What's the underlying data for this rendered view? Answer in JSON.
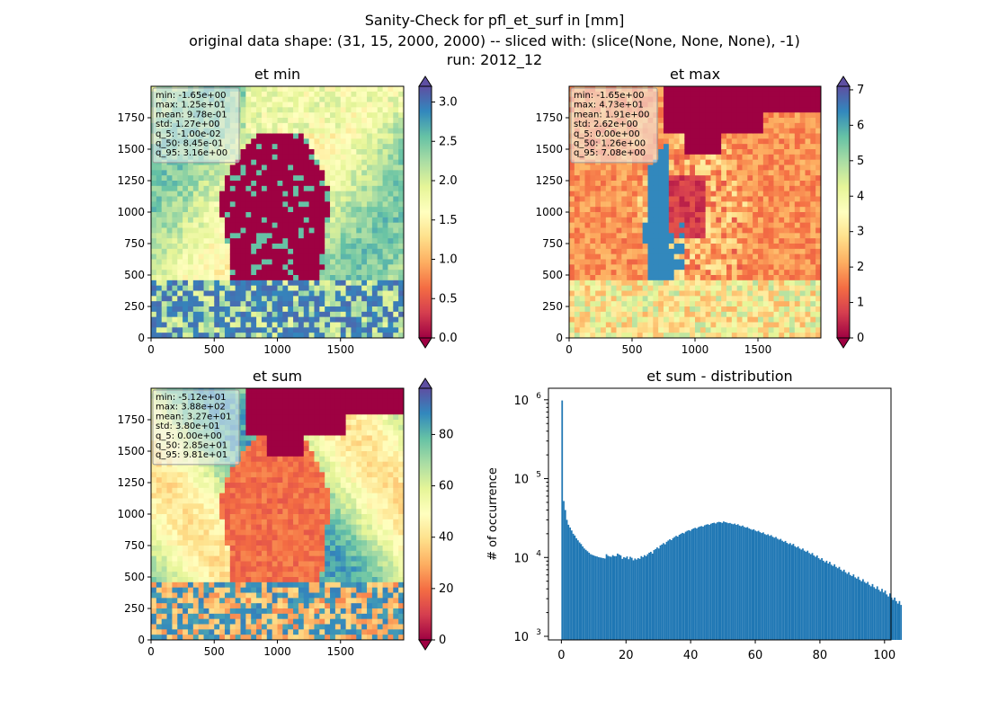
{
  "figure": {
    "title_lines": [
      "Sanity-Check for pfl_et_surf in [mm]",
      "original data shape: (31, 15, 2000, 2000) -- sliced with: (slice(None, None, None), -1)",
      "run: 2012_12"
    ]
  },
  "chart_data": [
    {
      "type": "heatmap",
      "title": "et min",
      "colormap": "Spectral",
      "xlim": [
        0,
        2000
      ],
      "ylim": [
        0,
        2000
      ],
      "xticks": [
        "0",
        "500",
        "1000",
        "1500"
      ],
      "yticks": [
        "0",
        "250",
        "500",
        "750",
        "1000",
        "1250",
        "1500",
        "1750"
      ],
      "colorbar": {
        "min": 0,
        "max": 3.2,
        "extend": "both",
        "ticks": [
          "0.0",
          "0.5",
          "1.0",
          "1.5",
          "2.0",
          "2.5",
          "3.0"
        ],
        "tick_values": [
          0,
          0.5,
          1.0,
          1.5,
          2.0,
          2.5,
          3.0
        ]
      },
      "stats": [
        "min: -1.65e+00",
        "max: 1.25e+01",
        "mean: 9.78e-01",
        "std: 1.27e+00",
        "q_5: -1.00e-02",
        "q_50: 8.45e-01",
        "q_95: 3.16e+00"
      ]
    },
    {
      "type": "heatmap",
      "title": "et max",
      "colormap": "Spectral",
      "xlim": [
        0,
        2000
      ],
      "ylim": [
        0,
        2000
      ],
      "xticks": [
        "0",
        "500",
        "1000",
        "1500"
      ],
      "yticks": [
        "0",
        "250",
        "500",
        "750",
        "1000",
        "1250",
        "1500",
        "1750"
      ],
      "colorbar": {
        "min": 0,
        "max": 7.1,
        "extend": "both",
        "ticks": [
          "0",
          "1",
          "2",
          "3",
          "4",
          "5",
          "6",
          "7"
        ],
        "tick_values": [
          0,
          1,
          2,
          3,
          4,
          5,
          6,
          7
        ]
      },
      "stats": [
        "min: -1.65e+00",
        "max: 4.73e+01",
        "mean: 1.91e+00",
        "std: 2.62e+00",
        "q_5: 0.00e+00",
        "q_50: 1.26e+00",
        "q_95: 7.08e+00"
      ]
    },
    {
      "type": "heatmap",
      "title": "et sum",
      "colormap": "Spectral",
      "xlim": [
        0,
        2000
      ],
      "ylim": [
        0,
        2000
      ],
      "xticks": [
        "0",
        "500",
        "1000",
        "1500"
      ],
      "yticks": [
        "0",
        "250",
        "500",
        "750",
        "1000",
        "1250",
        "1500",
        "1750"
      ],
      "colorbar": {
        "min": 0,
        "max": 98,
        "extend": "both",
        "ticks": [
          "0",
          "20",
          "40",
          "60",
          "80"
        ],
        "tick_values": [
          0,
          20,
          40,
          60,
          80
        ]
      },
      "stats": [
        "min: -5.12e+01",
        "max: 3.88e+02",
        "mean: 3.27e+01",
        "std: 3.80e+01",
        "q_5: 0.00e+00",
        "q_50: 2.85e+01",
        "q_95: 9.81e+01"
      ]
    },
    {
      "type": "bar",
      "title": "et sum - distribution",
      "xlabel": "",
      "ylabel": "# of occurrence",
      "yscale": "log",
      "xlim": [
        -4,
        102
      ],
      "ylim": [
        900,
        1400000
      ],
      "color": "#1f77b4",
      "xticks": [
        "0",
        "20",
        "40",
        "60",
        "80",
        "100"
      ],
      "xtick_values": [
        0,
        20,
        40,
        60,
        80,
        100
      ],
      "ytick_labels": [
        "10",
        "10",
        "10",
        "10"
      ],
      "ytick_exponents": [
        "3",
        "4",
        "5",
        "6"
      ],
      "ytick_values": [
        1000,
        10000,
        100000,
        1000000
      ],
      "bin_start": 0,
      "bin_width": 0.49,
      "values": [
        980000,
        52000,
        40000,
        30000,
        26000,
        24000,
        22000,
        20000,
        19000,
        17500,
        16500,
        15500,
        14800,
        13800,
        13000,
        12500,
        12000,
        11500,
        11000,
        10800,
        10600,
        10400,
        10300,
        10100,
        10000,
        9900,
        9800,
        9700,
        11000,
        10500,
        10300,
        10200,
        10700,
        10400,
        10400,
        11200,
        10900,
        10600,
        9600,
        10100,
        9900,
        10300,
        9500,
        10200,
        9900,
        9200,
        9700,
        9400,
        9800,
        9600,
        10400,
        10100,
        10700,
        10400,
        11000,
        11500,
        11800,
        11200,
        12400,
        12800,
        13400,
        13000,
        14200,
        14600,
        15200,
        14700,
        15800,
        16400,
        17000,
        16600,
        17600,
        18200,
        18800,
        18400,
        19400,
        20000,
        20500,
        20200,
        21200,
        21800,
        22200,
        21800,
        22800,
        23400,
        23800,
        23300,
        24200,
        24700,
        25000,
        24600,
        25600,
        26100,
        26400,
        25900,
        26800,
        27300,
        27600,
        27000,
        27900,
        28300,
        28000,
        27500,
        28600,
        28100,
        27700,
        27200,
        27400,
        26800,
        26400,
        26900,
        25900,
        26400,
        25400,
        24900,
        25400,
        24400,
        23900,
        24300,
        23400,
        22900,
        22400,
        22800,
        21900,
        21400,
        21800,
        20900,
        20400,
        20800,
        19800,
        19300,
        19700,
        18800,
        19200,
        18300,
        17800,
        18200,
        17300,
        16800,
        17200,
        16300,
        15800,
        16200,
        15300,
        14800,
        15200,
        14400,
        14900,
        13900,
        13400,
        13800,
        13000,
        12600,
        13000,
        12200,
        11800,
        12200,
        11400,
        11000,
        11400,
        10600,
        10200,
        10600,
        9800,
        9400,
        9800,
        9100,
        8700,
        9100,
        8400,
        8800,
        8100,
        7800,
        8200,
        7600,
        7300,
        7600,
        7000,
        6700,
        7000,
        6500,
        6200,
        6500,
        6000,
        5800,
        6100,
        5600,
        5400,
        5700,
        5200,
        5000,
        5300,
        4900,
        4700,
        4900,
        4500,
        4300,
        4600,
        4200,
        4000,
        4300,
        3900,
        3700,
        4000,
        3600,
        3800,
        3400,
        3200,
        3500,
        3100,
        2900,
        3100,
        2800,
        2600,
        2800,
        2500
      ]
    }
  ]
}
